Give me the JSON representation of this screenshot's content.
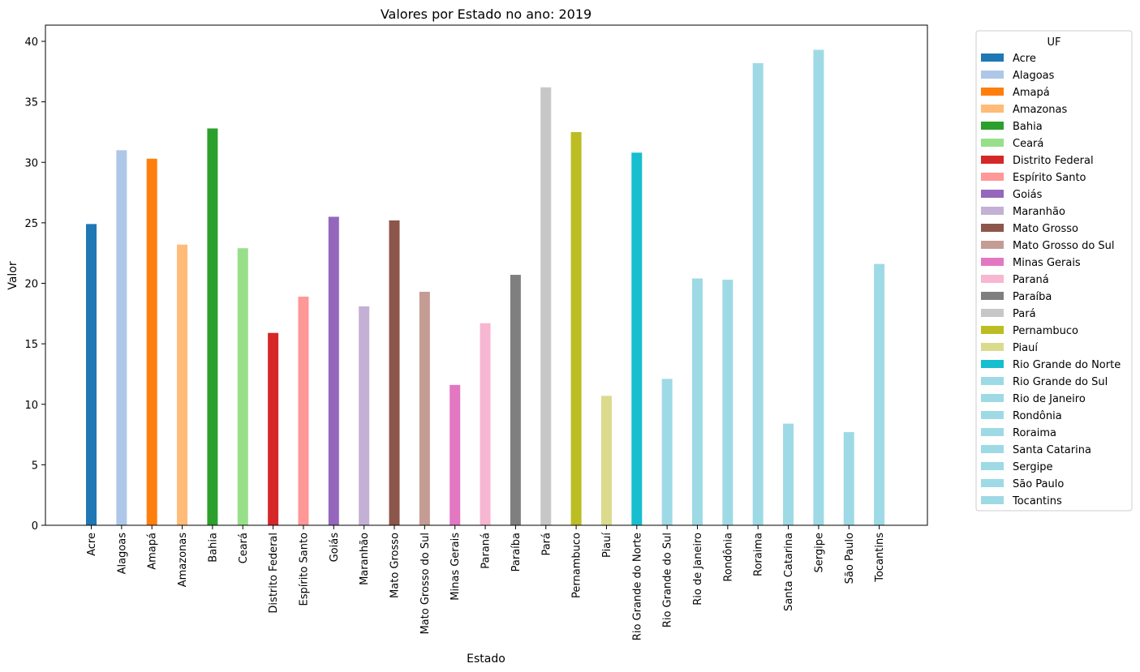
{
  "chart_data": {
    "type": "bar",
    "title": "Valores por Estado no ano: 2019",
    "xlabel": "Estado",
    "ylabel": "Valor",
    "ylim": [
      0,
      41.3
    ],
    "yticks": [
      0,
      5,
      10,
      15,
      20,
      25,
      30,
      35,
      40
    ],
    "legend_title": "UF",
    "legend_position": "outside-right",
    "grid": false,
    "categories": [
      "Acre",
      "Alagoas",
      "Amapá",
      "Amazonas",
      "Bahia",
      "Ceará",
      "Distrito Federal",
      "Espírito Santo",
      "Goiás",
      "Maranhão",
      "Mato Grosso",
      "Mato Grosso do Sul",
      "Minas Gerais",
      "Paraná",
      "Paraíba",
      "Pará",
      "Pernambuco",
      "Piauí",
      "Rio Grande do Norte",
      "Rio Grande do Sul",
      "Rio de Janeiro",
      "Rondônia",
      "Roraima",
      "Santa Catarina",
      "Sergipe",
      "São Paulo",
      "Tocantins"
    ],
    "values": [
      24.9,
      31.0,
      30.3,
      23.2,
      32.8,
      22.9,
      15.9,
      18.9,
      25.5,
      18.1,
      25.2,
      19.3,
      11.6,
      16.7,
      20.7,
      36.2,
      32.5,
      10.7,
      30.8,
      12.1,
      20.4,
      20.3,
      38.2,
      8.4,
      39.3,
      7.7,
      21.6
    ],
    "colors": [
      "#1f77b4",
      "#aec7e8",
      "#ff7f0e",
      "#ffbb78",
      "#2ca02c",
      "#98df8a",
      "#d62728",
      "#ff9896",
      "#9467bd",
      "#c5b0d5",
      "#8c564b",
      "#c49c94",
      "#e377c2",
      "#f7b6d2",
      "#7f7f7f",
      "#c7c7c7",
      "#bcbd22",
      "#dbdb8d",
      "#17becf",
      "#9edae5",
      "#9edae5",
      "#9edae5",
      "#9edae5",
      "#9edae5",
      "#9edae5",
      "#9edae5",
      "#9edae5"
    ]
  }
}
